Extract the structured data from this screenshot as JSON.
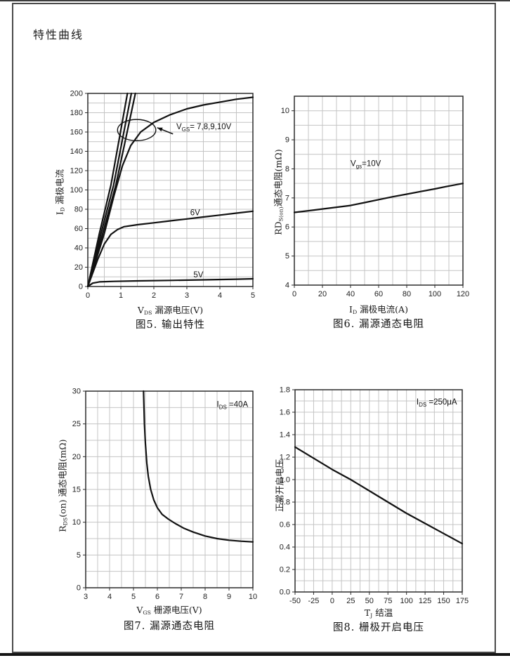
{
  "page": {
    "title": "特性曲线"
  },
  "chart_data": [
    {
      "id": "fig5",
      "type": "line",
      "caption": "图5. 输出特性",
      "xlabel": [
        {
          "t": "V"
        },
        {
          "t": "DS",
          "sub": true
        },
        {
          "t": " 漏源电压(V)"
        }
      ],
      "ylabel": [
        {
          "t": "I"
        },
        {
          "t": "D",
          "sub": true
        },
        {
          "t": " 漏极电流"
        }
      ],
      "x_range": [
        0,
        5
      ],
      "y_range": [
        0,
        200
      ],
      "x_grid_step": 0.5,
      "y_grid_step": 10,
      "grid": true,
      "legend": "none",
      "x_ticks": {
        "values": [
          0,
          1,
          2,
          3,
          4,
          5
        ],
        "labels": [
          "0",
          "1",
          "2",
          "3",
          "4",
          "5"
        ]
      },
      "y_ticks": {
        "values": [
          0,
          20,
          40,
          60,
          80,
          100,
          120,
          140,
          160,
          180,
          200
        ],
        "labels": [
          "0",
          "20",
          "40",
          "60",
          "80",
          "100",
          "120",
          "140",
          "160",
          "180",
          "200"
        ]
      },
      "series": [
        {
          "name": "VGS=10V",
          "points": [
            [
              0,
              0
            ],
            [
              0.35,
              55
            ],
            [
              0.7,
              105
            ],
            [
              1.2,
              200
            ]
          ]
        },
        {
          "name": "VGS=9V",
          "points": [
            [
              0,
              0
            ],
            [
              0.4,
              55
            ],
            [
              0.78,
              105
            ],
            [
              1.32,
              200
            ]
          ]
        },
        {
          "name": "VGS=8V",
          "points": [
            [
              0,
              0
            ],
            [
              0.45,
              55
            ],
            [
              0.85,
              105
            ],
            [
              1.44,
              200
            ]
          ]
        },
        {
          "name": "VGS=7V",
          "points": [
            [
              0,
              0
            ],
            [
              0.5,
              55
            ],
            [
              0.8,
              95
            ],
            [
              1.05,
              125
            ],
            [
              1.3,
              146
            ],
            [
              1.6,
              160
            ],
            [
              2,
              170
            ],
            [
              2.5,
              178
            ],
            [
              3,
              184
            ],
            [
              3.5,
              188
            ],
            [
              4,
              191
            ],
            [
              4.5,
              194
            ],
            [
              5,
              196
            ]
          ]
        },
        {
          "name": "VGS=6V",
          "points": [
            [
              0,
              0
            ],
            [
              0.15,
              14
            ],
            [
              0.3,
              28
            ],
            [
              0.5,
              44
            ],
            [
              0.7,
              54
            ],
            [
              0.9,
              59
            ],
            [
              1.1,
              62
            ],
            [
              1.5,
              64
            ],
            [
              2,
              66
            ],
            [
              2.5,
              68
            ],
            [
              3,
              70
            ],
            [
              3.5,
              72
            ],
            [
              4,
              74
            ],
            [
              4.5,
              76
            ],
            [
              5,
              78
            ]
          ]
        },
        {
          "name": "VGS=5V",
          "points": [
            [
              0,
              0
            ],
            [
              0.15,
              3.5
            ],
            [
              0.35,
              4.8
            ],
            [
              0.8,
              5.3
            ],
            [
              1.5,
              5.8
            ],
            [
              2.5,
              6.3
            ],
            [
              3.5,
              6.9
            ],
            [
              4.5,
              7.6
            ],
            [
              5,
              8
            ]
          ]
        }
      ],
      "curve_labels": [
        {
          "x": 3.25,
          "y": 74,
          "text": "6V"
        },
        {
          "x": 3.35,
          "y": 9.5,
          "text": "5V"
        }
      ],
      "annotations": [
        {
          "kind": "text",
          "x": 2.68,
          "y": 163,
          "anchor": "start",
          "segments": [
            {
              "t": "V"
            },
            {
              "t": "GS",
              "sub": true
            },
            {
              "t": "= 7,8,9,10V"
            }
          ]
        },
        {
          "kind": "ellipse",
          "cx": 1.48,
          "cy": 162,
          "rx": 0.58,
          "ry": 11
        },
        {
          "kind": "arrow",
          "x1": 2.58,
          "y1": 158,
          "x2": 2.1,
          "y2": 164.5
        }
      ]
    },
    {
      "id": "fig6",
      "type": "line",
      "caption": "图6. 漏源通态电阻",
      "xlabel": [
        {
          "t": "I"
        },
        {
          "t": "D",
          "sub": true
        },
        {
          "t": " 漏极电流(A)"
        }
      ],
      "ylabel": [
        {
          "t": "RD"
        },
        {
          "t": "S(on)",
          "sub": true
        },
        {
          "t": "通态电阻(mΩ)"
        }
      ],
      "x_range": [
        0,
        120
      ],
      "y_range": [
        4,
        10.5
      ],
      "x_grid_step": 10,
      "y_grid_step": 0.5,
      "grid": true,
      "legend": "none",
      "x_ticks": {
        "values": [
          0,
          20,
          40,
          60,
          80,
          100,
          120
        ],
        "labels": [
          "0",
          "20",
          "40",
          "60",
          "80",
          "100",
          "120"
        ]
      },
      "y_ticks": {
        "values": [
          4,
          5,
          6,
          7,
          8,
          9,
          10
        ],
        "labels": [
          "4",
          "5",
          "6",
          "7",
          "8",
          "9",
          "10"
        ]
      },
      "series": [
        {
          "name": "Vgs=10V",
          "points": [
            [
              0,
              6.5
            ],
            [
              10,
              6.56
            ],
            [
              20,
              6.62
            ],
            [
              30,
              6.68
            ],
            [
              40,
              6.74
            ],
            [
              50,
              6.84
            ],
            [
              60,
              6.94
            ],
            [
              70,
              7.04
            ],
            [
              80,
              7.13
            ],
            [
              90,
              7.22
            ],
            [
              100,
              7.31
            ],
            [
              110,
              7.41
            ],
            [
              120,
              7.5
            ]
          ]
        }
      ],
      "curve_labels": [],
      "annotations": [
        {
          "kind": "text",
          "x": 40,
          "y": 8.1,
          "anchor": "start",
          "segments": [
            {
              "t": "V"
            },
            {
              "t": "gs",
              "sub": true
            },
            {
              "t": "=10V"
            }
          ]
        }
      ]
    },
    {
      "id": "fig7",
      "type": "line",
      "caption": "图7. 漏源通态电阻",
      "xlabel": [
        {
          "t": "V"
        },
        {
          "t": "GS",
          "sub": true
        },
        {
          "t": " 栅源电压(V)"
        }
      ],
      "ylabel": [
        {
          "t": "R"
        },
        {
          "t": "DS",
          "sub": true
        },
        {
          "t": "(on) 通态电阻(mΩ)"
        }
      ],
      "x_range": [
        3,
        10
      ],
      "y_range": [
        0,
        30
      ],
      "x_grid_step": 0.5,
      "y_grid_step": 2.5,
      "grid": true,
      "legend": "none",
      "x_ticks": {
        "values": [
          3,
          4,
          5,
          6,
          7,
          8,
          9,
          10
        ],
        "labels": [
          "3",
          "4",
          "5",
          "6",
          "7",
          "8",
          "9",
          "10"
        ]
      },
      "y_ticks": {
        "values": [
          0,
          5,
          10,
          15,
          20,
          25,
          30
        ],
        "labels": [
          "0",
          "5",
          "10",
          "15",
          "20",
          "25",
          "30"
        ]
      },
      "series": [
        {
          "name": "IDS=40A",
          "points": [
            [
              5.42,
              30
            ],
            [
              5.46,
              25
            ],
            [
              5.5,
              22
            ],
            [
              5.56,
              19
            ],
            [
              5.62,
              17
            ],
            [
              5.72,
              15
            ],
            [
              5.85,
              13.4
            ],
            [
              6,
              12.2
            ],
            [
              6.2,
              11.2
            ],
            [
              6.45,
              10.5
            ],
            [
              6.75,
              9.8
            ],
            [
              7.1,
              9.1
            ],
            [
              7.5,
              8.5
            ],
            [
              8,
              7.9
            ],
            [
              8.5,
              7.5
            ],
            [
              9,
              7.25
            ],
            [
              9.5,
              7.1
            ],
            [
              10,
              7
            ]
          ]
        }
      ],
      "curve_labels": [],
      "annotations": [
        {
          "kind": "text",
          "x": 9.8,
          "y": 27.6,
          "anchor": "end",
          "segments": [
            {
              "t": "I"
            },
            {
              "t": "DS",
              "sub": true
            },
            {
              "t": " =40A"
            }
          ]
        }
      ]
    },
    {
      "id": "fig8",
      "type": "line",
      "caption": "图8. 栅极开启电压",
      "xlabel": [
        {
          "t": "T"
        },
        {
          "t": "J",
          "sub": true
        },
        {
          "t": " 结温"
        }
      ],
      "ylabel": [
        {
          "t": "正常开启电压"
        }
      ],
      "x_range": [
        -50,
        175
      ],
      "y_range": [
        0,
        1.8
      ],
      "x_grid_step": 12.5,
      "y_grid_step": 0.1,
      "grid": true,
      "legend": "none",
      "x_ticks": {
        "values": [
          -50,
          -25,
          0,
          25,
          50,
          75,
          100,
          125,
          150,
          175
        ],
        "labels": [
          "-50",
          "-25",
          "0",
          "25",
          "50",
          "75",
          "100",
          "125",
          "150",
          "175"
        ]
      },
      "y_ticks": {
        "values": [
          0,
          0.2,
          0.4,
          0.6,
          0.8,
          1.0,
          1.2,
          1.4,
          1.6,
          1.8
        ],
        "labels": [
          "0.0",
          "0.2",
          "0.4",
          "0.6",
          "0.8",
          "1.0",
          "1.2",
          "1.4",
          "1.6",
          "1.8"
        ]
      },
      "series": [
        {
          "name": "IDS=250uA",
          "points": [
            [
              -50,
              1.29
            ],
            [
              0,
              1.09
            ],
            [
              25,
              1.0
            ],
            [
              50,
              0.9
            ],
            [
              75,
              0.8
            ],
            [
              100,
              0.7
            ],
            [
              125,
              0.61
            ],
            [
              150,
              0.52
            ],
            [
              175,
              0.43
            ]
          ]
        }
      ],
      "curve_labels": [],
      "annotations": [
        {
          "kind": "text",
          "x": 168,
          "y": 1.67,
          "anchor": "end",
          "segments": [
            {
              "t": "I"
            },
            {
              "t": "DS",
              "sub": true
            },
            {
              "t": " =250μA"
            }
          ]
        }
      ]
    }
  ]
}
